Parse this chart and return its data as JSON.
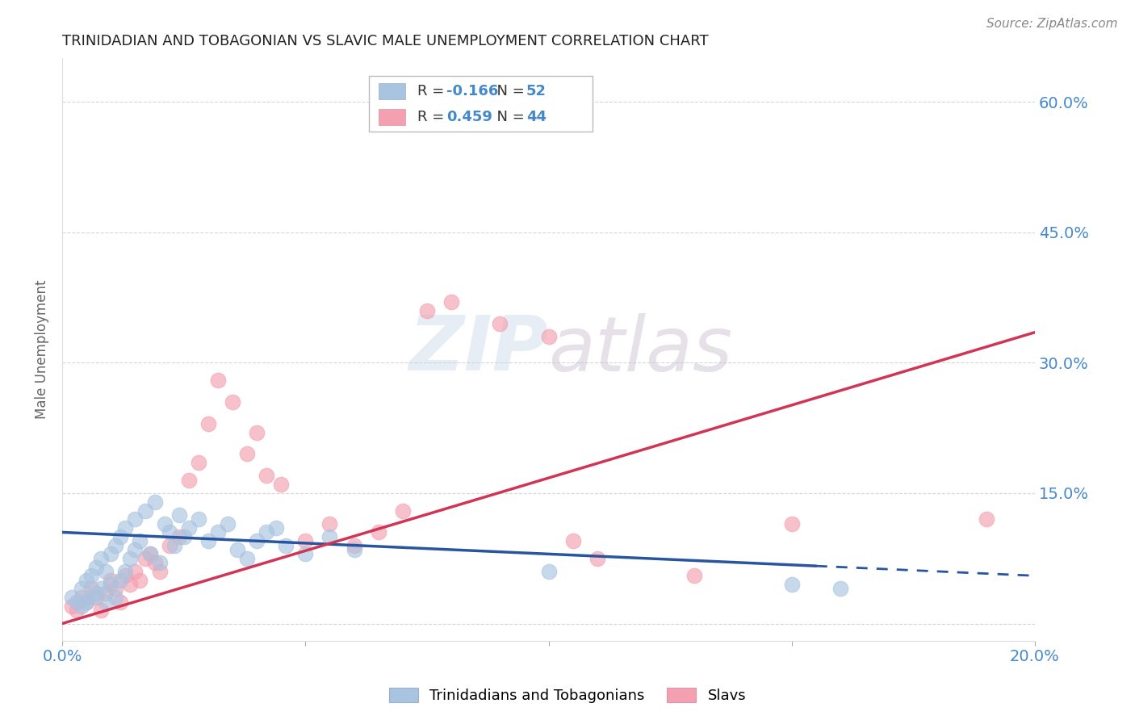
{
  "title": "TRINIDADIAN AND TOBAGONIAN VS SLAVIC MALE UNEMPLOYMENT CORRELATION CHART",
  "source": "Source: ZipAtlas.com",
  "ylabel": "Male Unemployment",
  "xlabel": "",
  "xlim": [
    0.0,
    0.2
  ],
  "ylim": [
    -0.02,
    0.65
  ],
  "yticks": [
    0.0,
    0.15,
    0.3,
    0.45,
    0.6
  ],
  "ytick_labels": [
    "",
    "15.0%",
    "30.0%",
    "45.0%",
    "60.0%"
  ],
  "xticks": [
    0.0,
    0.05,
    0.1,
    0.15,
    0.2
  ],
  "xtick_labels": [
    "0.0%",
    "",
    "",
    "",
    "20.0%"
  ],
  "legend_label1": "Trinidadians and Tobagonians",
  "legend_label2": "Slavs",
  "R1": -0.166,
  "N1": 52,
  "R2": 0.459,
  "N2": 44,
  "color1": "#a8c4e0",
  "color2": "#f4a0b0",
  "line_color1": "#2855a0",
  "line_color2": "#d03555",
  "title_color": "#222222",
  "axis_label_color": "#666666",
  "tick_color": "#4488cc",
  "grid_color": "#cccccc",
  "blue_line_x0": 0.0,
  "blue_line_y0": 0.105,
  "blue_line_x1": 0.2,
  "blue_line_y1": 0.055,
  "blue_line_dash_x0": 0.155,
  "blue_line_dash_x1": 0.2,
  "pink_line_x0": 0.0,
  "pink_line_y0": 0.0,
  "pink_line_x1": 0.2,
  "pink_line_y1": 0.335,
  "blue_scatter_x": [
    0.002,
    0.003,
    0.004,
    0.004,
    0.005,
    0.005,
    0.006,
    0.006,
    0.007,
    0.007,
    0.008,
    0.008,
    0.009,
    0.009,
    0.01,
    0.01,
    0.011,
    0.011,
    0.012,
    0.012,
    0.013,
    0.013,
    0.014,
    0.015,
    0.015,
    0.016,
    0.017,
    0.018,
    0.019,
    0.02,
    0.021,
    0.022,
    0.023,
    0.024,
    0.025,
    0.026,
    0.028,
    0.03,
    0.032,
    0.034,
    0.036,
    0.038,
    0.04,
    0.042,
    0.044,
    0.046,
    0.05,
    0.055,
    0.06,
    0.1,
    0.15,
    0.16
  ],
  "blue_scatter_y": [
    0.03,
    0.025,
    0.02,
    0.04,
    0.025,
    0.05,
    0.03,
    0.055,
    0.035,
    0.065,
    0.04,
    0.075,
    0.025,
    0.06,
    0.045,
    0.08,
    0.03,
    0.09,
    0.05,
    0.1,
    0.06,
    0.11,
    0.075,
    0.085,
    0.12,
    0.095,
    0.13,
    0.08,
    0.14,
    0.07,
    0.115,
    0.105,
    0.09,
    0.125,
    0.1,
    0.11,
    0.12,
    0.095,
    0.105,
    0.115,
    0.085,
    0.075,
    0.095,
    0.105,
    0.11,
    0.09,
    0.08,
    0.1,
    0.085,
    0.06,
    0.045,
    0.04
  ],
  "pink_scatter_x": [
    0.002,
    0.003,
    0.004,
    0.005,
    0.006,
    0.007,
    0.008,
    0.009,
    0.01,
    0.011,
    0.012,
    0.013,
    0.014,
    0.015,
    0.016,
    0.017,
    0.018,
    0.019,
    0.02,
    0.022,
    0.024,
    0.026,
    0.028,
    0.03,
    0.032,
    0.035,
    0.038,
    0.04,
    0.042,
    0.045,
    0.05,
    0.055,
    0.06,
    0.065,
    0.07,
    0.075,
    0.08,
    0.09,
    0.1,
    0.105,
    0.11,
    0.13,
    0.15,
    0.19
  ],
  "pink_scatter_y": [
    0.02,
    0.015,
    0.03,
    0.025,
    0.04,
    0.03,
    0.015,
    0.035,
    0.05,
    0.04,
    0.025,
    0.055,
    0.045,
    0.06,
    0.05,
    0.075,
    0.08,
    0.07,
    0.06,
    0.09,
    0.1,
    0.165,
    0.185,
    0.23,
    0.28,
    0.255,
    0.195,
    0.22,
    0.17,
    0.16,
    0.095,
    0.115,
    0.09,
    0.105,
    0.13,
    0.36,
    0.37,
    0.345,
    0.33,
    0.095,
    0.075,
    0.055,
    0.115,
    0.12
  ]
}
